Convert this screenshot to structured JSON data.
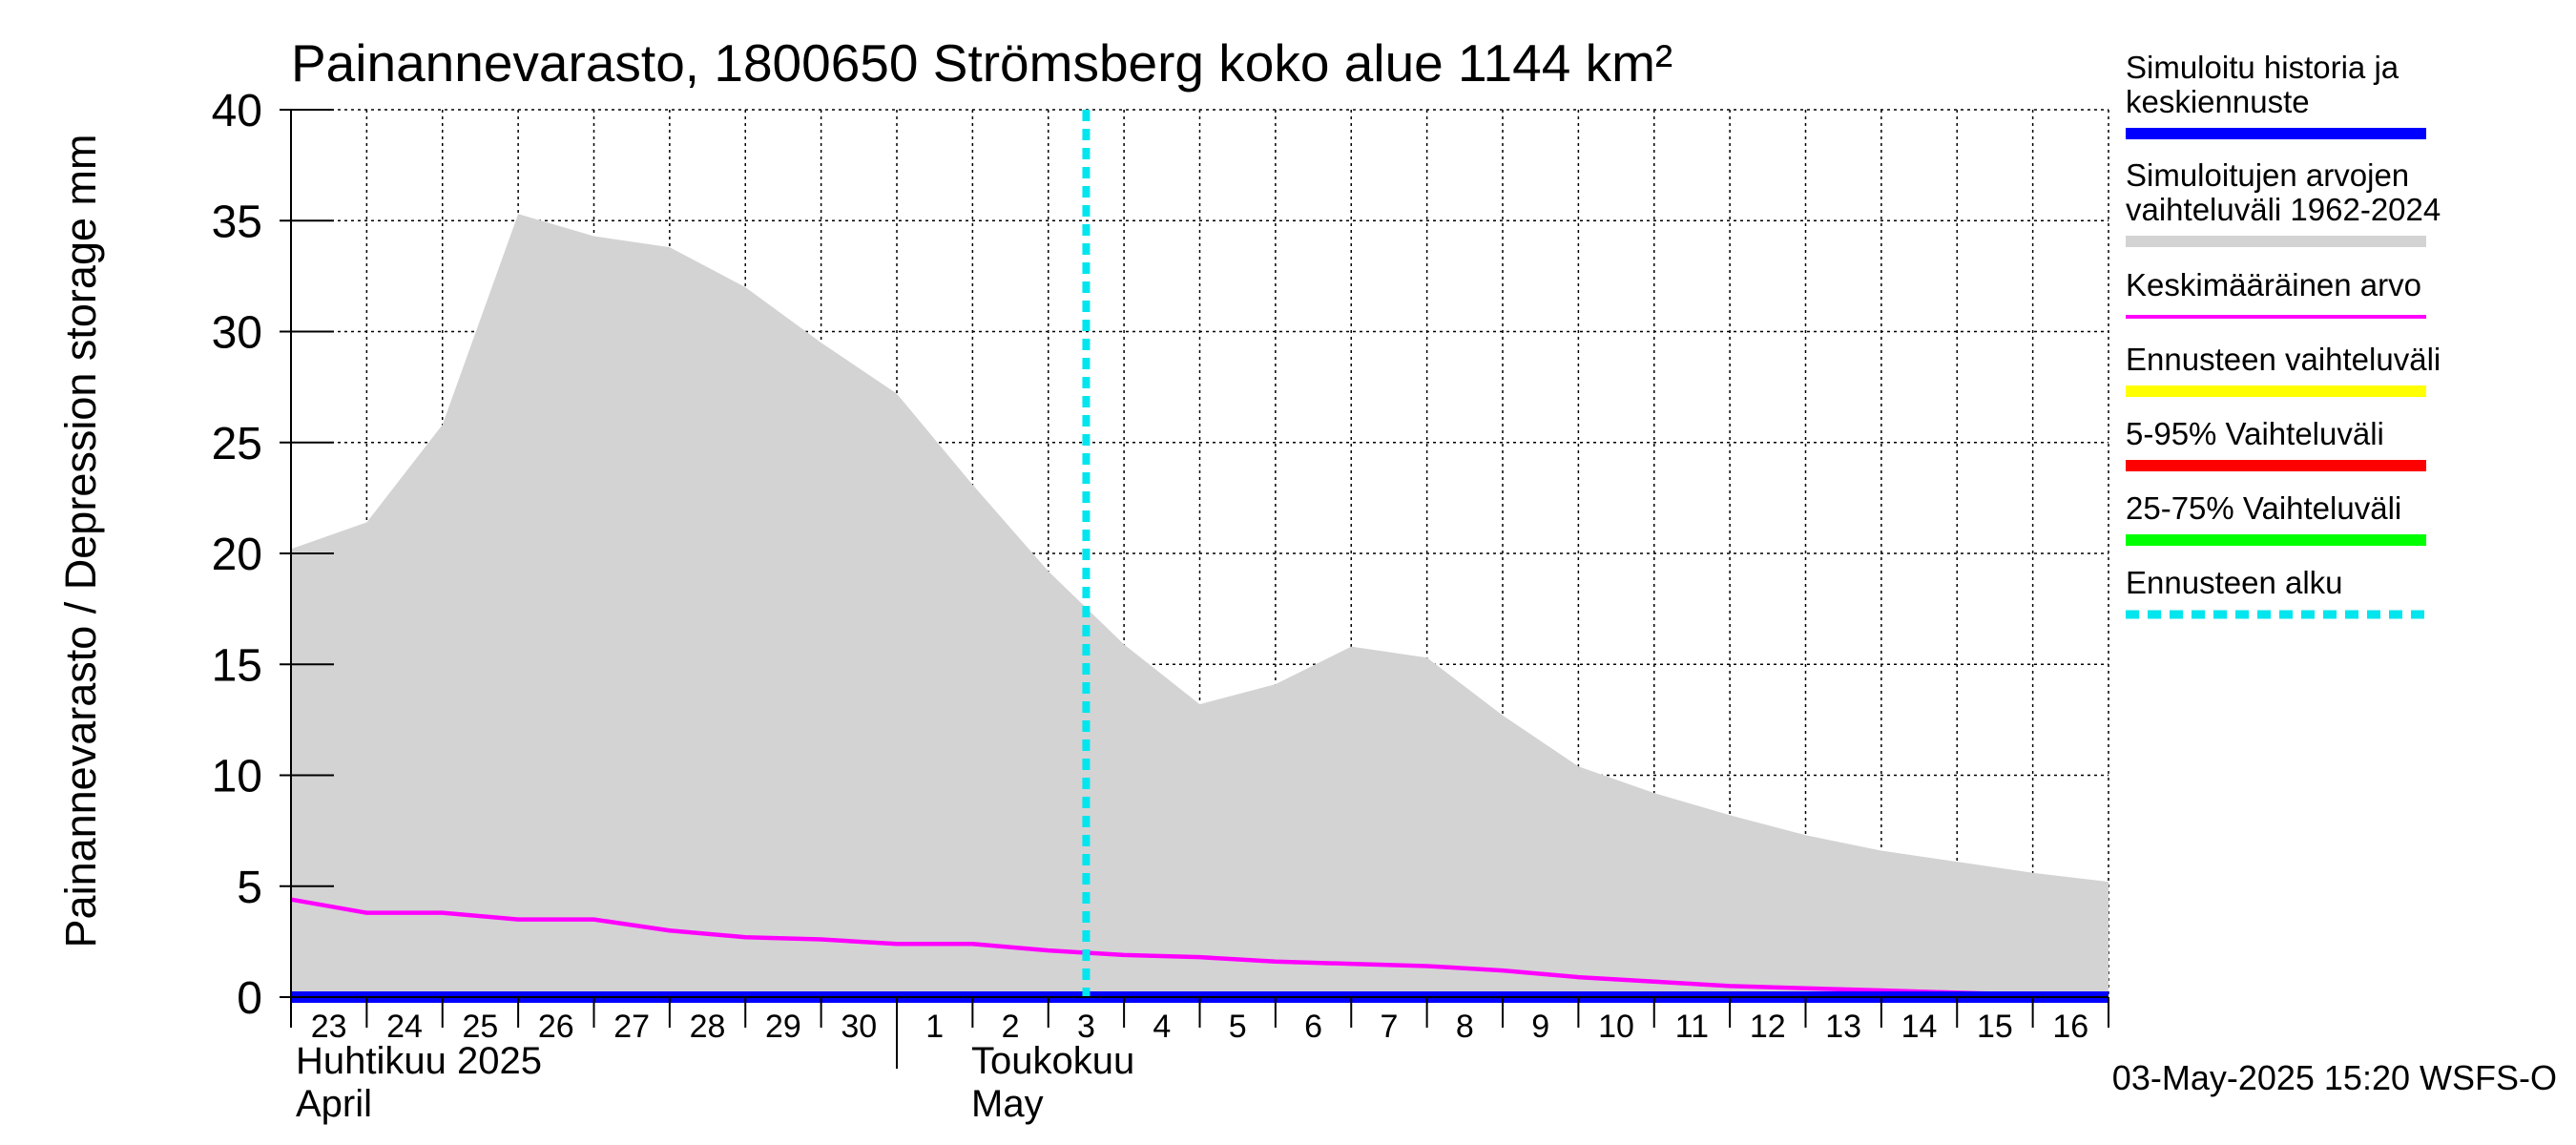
{
  "chart_data": {
    "type": "area",
    "title": "Painannevarasto, 1800650 Strömsberg koko alue 1144 km²",
    "ylabel": "Painannevarasto / Depression storage    mm",
    "ylim": [
      0,
      40
    ],
    "yticks": [
      0,
      5,
      10,
      15,
      20,
      25,
      30,
      35,
      40
    ],
    "x_tick_labels": [
      "23",
      "24",
      "25",
      "26",
      "27",
      "28",
      "29",
      "30",
      "1",
      "2",
      "3",
      "4",
      "5",
      "6",
      "7",
      "8",
      "9",
      "10",
      "11",
      "12",
      "13",
      "14",
      "15",
      "16"
    ],
    "month_labels": [
      {
        "line1": "Huhtikuu  2025",
        "line2": "April"
      },
      {
        "line1": "Toukokuu",
        "line2": "May"
      }
    ],
    "forecast_start_day": 10.5,
    "grid": true,
    "series": [
      {
        "name": "Simuloitujen arvojen vaihteluväli 1962-2024",
        "kind": "band",
        "color": "#d3d3d3",
        "lower": [
          0,
          0,
          0,
          0,
          0,
          0,
          0,
          0,
          0,
          0,
          0,
          0,
          0,
          0,
          0,
          0,
          0,
          0,
          0,
          0,
          0,
          0,
          0,
          0,
          0
        ],
        "upper": [
          20.2,
          21.4,
          25.8,
          35.3,
          34.3,
          33.8,
          32.0,
          29.5,
          27.2,
          23.1,
          19.2,
          15.9,
          13.2,
          14.1,
          15.8,
          15.3,
          12.7,
          10.4,
          9.2,
          8.2,
          7.3,
          6.6,
          6.1,
          5.6,
          5.2
        ]
      },
      {
        "name": "Keskimääräinen arvo",
        "kind": "line",
        "color": "#ff00ff",
        "values": [
          4.4,
          3.8,
          3.8,
          3.5,
          3.5,
          3.0,
          2.7,
          2.6,
          2.4,
          2.4,
          2.1,
          1.9,
          1.8,
          1.6,
          1.5,
          1.4,
          1.2,
          0.9,
          0.7,
          0.5,
          0.4,
          0.3,
          0.2,
          0.1,
          0.1
        ]
      },
      {
        "name": "Simuloitu historia ja keskiennuste",
        "kind": "line",
        "color": "#0000ff",
        "values": [
          0,
          0,
          0,
          0,
          0,
          0,
          0,
          0,
          0,
          0,
          0,
          0,
          0,
          0,
          0,
          0,
          0,
          0,
          0,
          0,
          0,
          0,
          0,
          0,
          0
        ]
      }
    ],
    "legend": {
      "placement": "right",
      "items": [
        {
          "label": "Simuloitu historia ja keskiennuste",
          "color": "#0000ff",
          "style": "thick"
        },
        {
          "label": "Simuloitujen arvojen vaihteluväli 1962-2024",
          "color": "#d3d3d3",
          "style": "thick"
        },
        {
          "label": "Keskimääräinen arvo",
          "color": "#ff00ff",
          "style": "thin"
        },
        {
          "label": "Ennusteen vaihteluväli",
          "color": "#ffff00",
          "style": "thick"
        },
        {
          "label": "5-95% Vaihteluväli",
          "color": "#ff0000",
          "style": "thick"
        },
        {
          "label": "25-75% Vaihteluväli",
          "color": "#00ff00",
          "style": "thick"
        },
        {
          "label": "Ennusteen alku",
          "color": "#00e5ee",
          "style": "dashed"
        }
      ]
    }
  },
  "footer": {
    "timestamp": "03-May-2025 15:20 WSFS-O"
  }
}
